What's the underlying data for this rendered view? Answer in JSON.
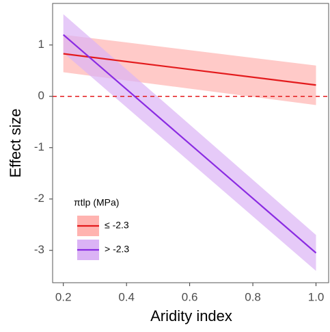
{
  "chart_data": {
    "type": "line",
    "x_label": "Aridity index",
    "y_label": "Effect size",
    "x": [
      0.2,
      1.0
    ],
    "series": [
      {
        "name": "≤ -2.3",
        "color": "#e31a1c",
        "band_color": "#ffb3b0",
        "values": [
          0.83,
          0.22
        ],
        "lower": [
          0.47,
          -0.17
        ],
        "upper": [
          1.2,
          0.6
        ]
      },
      {
        "name": "> -2.3",
        "color": "#8a2be2",
        "band_color": "#dbb3f5",
        "values": [
          1.2,
          -3.05
        ],
        "lower": [
          0.85,
          -3.4
        ],
        "upper": [
          1.6,
          -2.7
        ]
      }
    ],
    "hline": 0,
    "hline_color": "#e31a1c",
    "xlim": [
      0.166,
      1.04
    ],
    "ylim": [
      -3.63,
      1.81
    ],
    "xticks": [
      0.2,
      0.4,
      0.6,
      0.8,
      {
        "value": 1,
        "label": "1.0"
      }
    ],
    "yticks": [
      1,
      0,
      -1,
      -2,
      -3
    ],
    "legend_title": "πtlp (MPa)"
  }
}
